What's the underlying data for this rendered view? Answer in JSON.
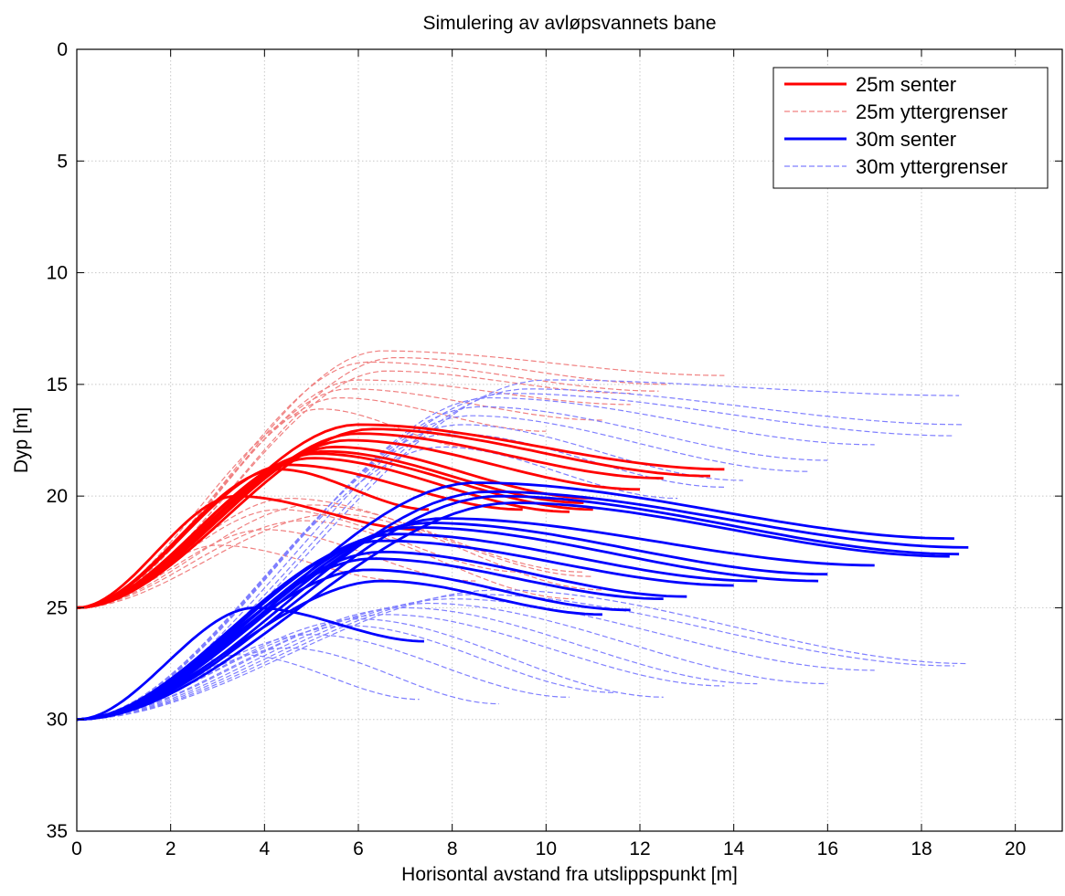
{
  "chart_data": {
    "type": "line",
    "title": "Simulering av avløpsvannets bane",
    "xlabel": "Horisontal avstand fra utslippspunkt [m]",
    "ylabel": "Dyp [m]",
    "xlim": [
      0,
      21
    ],
    "ylim": [
      35,
      0
    ],
    "y_axis_reversed": true,
    "xticks": [
      0,
      2,
      4,
      6,
      8,
      10,
      12,
      14,
      16,
      18,
      20
    ],
    "yticks": [
      0,
      5,
      10,
      15,
      20,
      25,
      30,
      35
    ],
    "grid": true,
    "legend_position": "top-right",
    "legend": [
      {
        "label": "25m senter",
        "color": "#ff0000",
        "style": "solid"
      },
      {
        "label": "25m yttergrenser",
        "color": "#f08080",
        "style": "dashed"
      },
      {
        "label": "30m senter",
        "color": "#0000ff",
        "style": "solid"
      },
      {
        "label": "30m yttergrenser",
        "color": "#7f7fff",
        "style": "dashed"
      }
    ],
    "series": [
      {
        "group": "25m senter",
        "color": "#ff0000",
        "style": "solid",
        "curves": [
          {
            "rise": 8.2,
            "peak_x": 6.0,
            "drop": 2.0,
            "end_x": 13.8
          },
          {
            "rise": 8.0,
            "peak_x": 6.3,
            "drop": 2.1,
            "end_x": 13.5
          },
          {
            "rise": 7.8,
            "peak_x": 6.0,
            "drop": 2.0,
            "end_x": 12.5
          },
          {
            "rise": 7.5,
            "peak_x": 5.8,
            "drop": 2.2,
            "end_x": 12.0
          },
          {
            "rise": 7.2,
            "peak_x": 5.5,
            "drop": 2.3,
            "end_x": 11.0
          },
          {
            "rise": 7.0,
            "peak_x": 5.3,
            "drop": 2.3,
            "end_x": 10.8
          },
          {
            "rise": 6.9,
            "peak_x": 5.1,
            "drop": 2.5,
            "end_x": 11.0
          },
          {
            "rise": 6.7,
            "peak_x": 5.0,
            "drop": 2.4,
            "end_x": 10.5
          },
          {
            "rise": 6.4,
            "peak_x": 4.5,
            "drop": 2.0,
            "end_x": 9.5
          },
          {
            "rise": 6.2,
            "peak_x": 4.3,
            "drop": 1.8,
            "end_x": 7.5
          },
          {
            "rise": 5.0,
            "peak_x": 3.4,
            "drop": 1.5,
            "end_x": 7.3
          }
        ]
      },
      {
        "group": "25m yttergrenser",
        "color": "#f08080",
        "style": "dashed",
        "curves": [
          {
            "rise": 11.5,
            "peak_x": 6.5,
            "drop": 1.1,
            "end_x": 13.8
          },
          {
            "rise": 11.2,
            "peak_x": 6.8,
            "drop": 1.2,
            "end_x": 12.6
          },
          {
            "rise": 11.0,
            "peak_x": 6.2,
            "drop": 1.3,
            "end_x": 12.4
          },
          {
            "rise": 10.6,
            "peak_x": 6.6,
            "drop": 1.0,
            "end_x": 11.8
          },
          {
            "rise": 10.2,
            "peak_x": 6.0,
            "drop": 1.1,
            "end_x": 11.8
          },
          {
            "rise": 9.8,
            "peak_x": 5.8,
            "drop": 1.4,
            "end_x": 11.2
          },
          {
            "rise": 9.4,
            "peak_x": 5.6,
            "drop": 1.5,
            "end_x": 10.0
          },
          {
            "rise": 8.9,
            "peak_x": 5.2,
            "drop": 1.8,
            "end_x": 8.6
          },
          {
            "rise": 4.9,
            "peak_x": 4.5,
            "drop": 3.5,
            "end_x": 11.0
          },
          {
            "rise": 4.6,
            "peak_x": 5.0,
            "drop": 3.0,
            "end_x": 10.8
          },
          {
            "rise": 4.4,
            "peak_x": 4.3,
            "drop": 2.8,
            "end_x": 9.5
          },
          {
            "rise": 4.2,
            "peak_x": 5.5,
            "drop": 3.4,
            "end_x": 11.2
          },
          {
            "rise": 3.9,
            "peak_x": 4.8,
            "drop": 3.5,
            "end_x": 10.6
          },
          {
            "rise": 3.5,
            "peak_x": 4.0,
            "drop": 2.3,
            "end_x": 8.5
          },
          {
            "rise": 2.8,
            "peak_x": 3.0,
            "drop": 1.6,
            "end_x": 7.0
          }
        ]
      },
      {
        "group": "30m senter",
        "color": "#0000ff",
        "style": "solid",
        "curves": [
          {
            "rise": 10.6,
            "peak_x": 8.5,
            "drop": 2.5,
            "end_x": 18.7
          },
          {
            "rise": 10.2,
            "peak_x": 8.8,
            "drop": 2.5,
            "end_x": 19.0
          },
          {
            "rise": 10.0,
            "peak_x": 9.0,
            "drop": 2.6,
            "end_x": 18.8
          },
          {
            "rise": 9.7,
            "peak_x": 9.3,
            "drop": 2.4,
            "end_x": 18.6
          },
          {
            "rise": 9.0,
            "peak_x": 7.8,
            "drop": 2.1,
            "end_x": 17.0
          },
          {
            "rise": 8.8,
            "peak_x": 7.5,
            "drop": 2.3,
            "end_x": 16.0
          },
          {
            "rise": 8.6,
            "peak_x": 7.2,
            "drop": 2.4,
            "end_x": 15.8
          },
          {
            "rise": 8.3,
            "peak_x": 6.8,
            "drop": 2.1,
            "end_x": 14.5
          },
          {
            "rise": 8.0,
            "peak_x": 6.5,
            "drop": 2.0,
            "end_x": 14.0
          },
          {
            "rise": 7.5,
            "peak_x": 6.5,
            "drop": 2.0,
            "end_x": 13.0
          },
          {
            "rise": 7.2,
            "peak_x": 6.3,
            "drop": 1.8,
            "end_x": 12.5
          },
          {
            "rise": 6.7,
            "peak_x": 6.2,
            "drop": 1.8,
            "end_x": 11.8
          },
          {
            "rise": 6.2,
            "peak_x": 6.5,
            "drop": 1.5,
            "end_x": 11.2
          },
          {
            "rise": 5.0,
            "peak_x": 3.8,
            "drop": 1.5,
            "end_x": 7.4
          }
        ]
      },
      {
        "group": "30m yttergrenser",
        "color": "#7f7fff",
        "style": "dashed",
        "curves": [
          {
            "rise": 15.2,
            "peak_x": 10.0,
            "drop": 0.7,
            "end_x": 18.8
          },
          {
            "rise": 14.8,
            "peak_x": 9.6,
            "drop": 1.6,
            "end_x": 18.9
          },
          {
            "rise": 14.6,
            "peak_x": 9.2,
            "drop": 1.9,
            "end_x": 18.7
          },
          {
            "rise": 14.4,
            "peak_x": 8.8,
            "drop": 2.1,
            "end_x": 17.0
          },
          {
            "rise": 14.0,
            "peak_x": 8.6,
            "drop": 2.4,
            "end_x": 16.0
          },
          {
            "rise": 13.6,
            "peak_x": 8.4,
            "drop": 2.5,
            "end_x": 15.6
          },
          {
            "rise": 13.2,
            "peak_x": 8.2,
            "drop": 2.5,
            "end_x": 14.2
          },
          {
            "rise": 12.8,
            "peak_x": 8.0,
            "drop": 2.4,
            "end_x": 13.8
          },
          {
            "rise": 12.2,
            "peak_x": 7.8,
            "drop": 2.3,
            "end_x": 12.8
          },
          {
            "rise": 5.8,
            "peak_x": 9.0,
            "drop": 3.3,
            "end_x": 19.0
          },
          {
            "rise": 5.6,
            "peak_x": 8.5,
            "drop": 3.2,
            "end_x": 18.7
          },
          {
            "rise": 5.4,
            "peak_x": 8.0,
            "drop": 3.2,
            "end_x": 17.0
          },
          {
            "rise": 5.2,
            "peak_x": 7.5,
            "drop": 3.6,
            "end_x": 16.0
          },
          {
            "rise": 5.0,
            "peak_x": 7.0,
            "drop": 3.4,
            "end_x": 14.5
          },
          {
            "rise": 4.7,
            "peak_x": 6.6,
            "drop": 3.2,
            "end_x": 13.8
          },
          {
            "rise": 4.5,
            "peak_x": 6.0,
            "drop": 3.5,
            "end_x": 12.5
          },
          {
            "rise": 4.2,
            "peak_x": 5.8,
            "drop": 3.0,
            "end_x": 11.5
          },
          {
            "rise": 3.8,
            "peak_x": 5.0,
            "drop": 2.8,
            "end_x": 10.5
          },
          {
            "rise": 3.2,
            "peak_x": 4.5,
            "drop": 2.5,
            "end_x": 9.0
          },
          {
            "rise": 2.9,
            "peak_x": 3.5,
            "drop": 2.0,
            "end_x": 7.3
          }
        ]
      }
    ],
    "release_depths": {
      "25m senter": 25,
      "25m yttergrenser": 25,
      "30m senter": 30,
      "30m yttergrenser": 30
    }
  }
}
